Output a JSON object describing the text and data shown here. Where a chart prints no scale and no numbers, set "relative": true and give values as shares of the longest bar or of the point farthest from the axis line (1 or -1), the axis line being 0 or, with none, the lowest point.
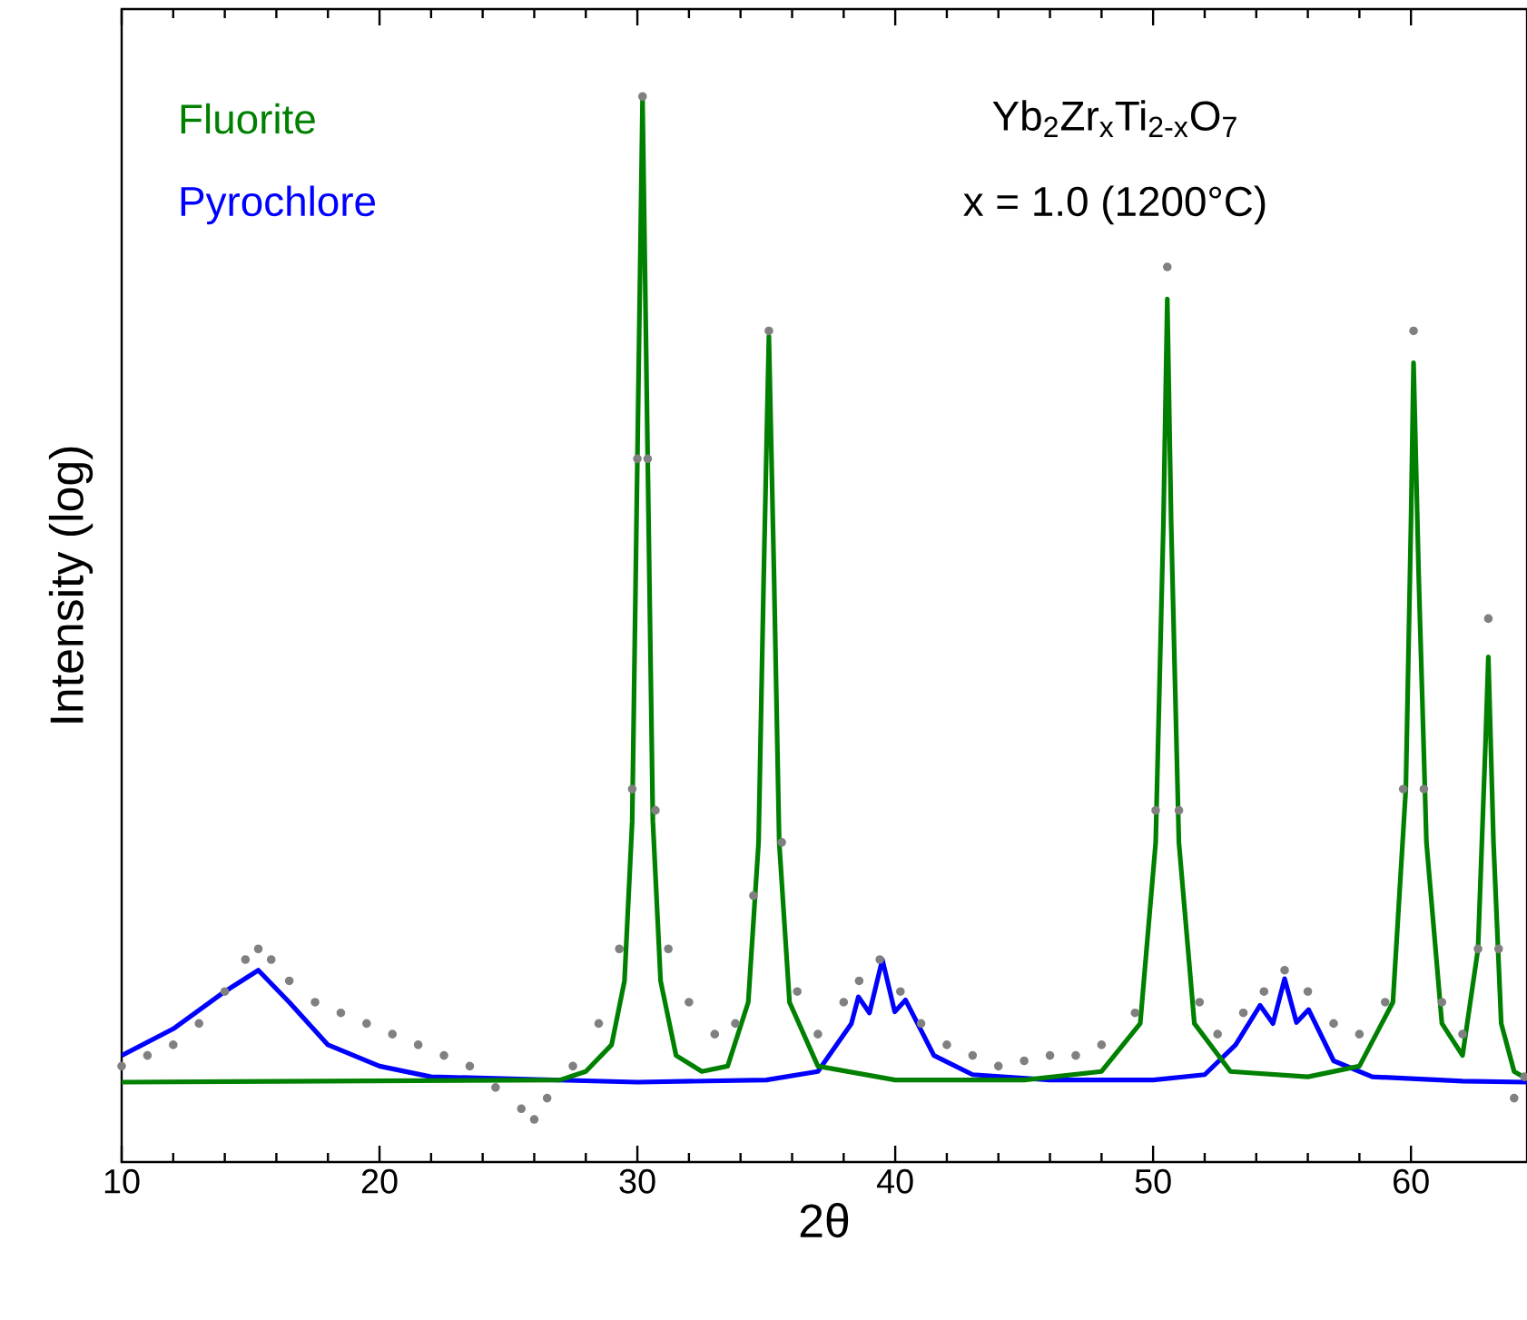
{
  "chart_data": {
    "type": "line",
    "title": "Yb$_{2}$Zr$_{x}$Ti$_{2-x}$O$_{7}$",
    "subtitle": "x = 1.0 (1200°C)",
    "xlabel": "2θ",
    "ylabel": "Intensity (log)",
    "relative": true,
    "xlim": [
      10,
      64.5
    ],
    "xticks": [
      10,
      20,
      30,
      40,
      50,
      60
    ],
    "series": [
      {
        "type": "scatter",
        "color": "#808080",
        "x": [
          10,
          11,
          12,
          13,
          14,
          14.8,
          15.3,
          15.8,
          16.5,
          17.5,
          18.5,
          19.5,
          20.5,
          21.5,
          22.5,
          23.5,
          24.5,
          25.5,
          26,
          26.5,
          27.5,
          28.5,
          29.3,
          29.8,
          30.0,
          30.2,
          30.4,
          30.7,
          31.2,
          32,
          33,
          33.8,
          34.5,
          35.1,
          35.6,
          36.2,
          37,
          38,
          38.6,
          39.4,
          40.2,
          41,
          42,
          43,
          44,
          45,
          46,
          47,
          48,
          49.3,
          50.1,
          50.55,
          51,
          51.8,
          52.5,
          53.5,
          54.3,
          55.1,
          56,
          57,
          58,
          59,
          59.7,
          60.1,
          60.5,
          61.2,
          62,
          62.6,
          63,
          63.4,
          64,
          64.4
        ],
        "values": [
          0.09,
          0.1,
          0.11,
          0.13,
          0.16,
          0.19,
          0.2,
          0.19,
          0.17,
          0.15,
          0.14,
          0.13,
          0.12,
          0.11,
          0.1,
          0.09,
          0.07,
          0.05,
          0.04,
          0.06,
          0.09,
          0.13,
          0.2,
          0.35,
          0.66,
          1.0,
          0.66,
          0.33,
          0.2,
          0.15,
          0.12,
          0.13,
          0.25,
          0.78,
          0.3,
          0.16,
          0.12,
          0.15,
          0.17,
          0.19,
          0.16,
          0.13,
          0.11,
          0.1,
          0.09,
          0.095,
          0.1,
          0.1,
          0.11,
          0.14,
          0.33,
          0.84,
          0.33,
          0.15,
          0.12,
          0.14,
          0.16,
          0.18,
          0.16,
          0.13,
          0.12,
          0.15,
          0.35,
          0.78,
          0.35,
          0.15,
          0.12,
          0.2,
          0.51,
          0.2,
          0.06,
          0.08
        ]
      },
      {
        "name": "Pyrochlore",
        "color": "#0000ff",
        "x": [
          10,
          12,
          14,
          15.3,
          16.5,
          18,
          20,
          22,
          30,
          35,
          37,
          38.3,
          38.57,
          39.0,
          39.5,
          39.98,
          40.4,
          41.5,
          43,
          46,
          50,
          52,
          53.2,
          54.15,
          54.65,
          55.1,
          55.56,
          56.03,
          57,
          58.5,
          62,
          64.5
        ],
        "values": [
          0.1,
          0.125,
          0.16,
          0.18,
          0.15,
          0.11,
          0.09,
          0.08,
          0.075,
          0.077,
          0.085,
          0.13,
          0.155,
          0.14,
          0.19,
          0.141,
          0.152,
          0.1,
          0.082,
          0.077,
          0.077,
          0.082,
          0.11,
          0.147,
          0.13,
          0.172,
          0.131,
          0.143,
          0.095,
          0.08,
          0.076,
          0.075
        ]
      },
      {
        "name": "Fluorite",
        "color": "#008000",
        "x": [
          10,
          27,
          28,
          29,
          29.5,
          29.8,
          30.0,
          30.2,
          30.4,
          30.6,
          30.9,
          31.5,
          32.5,
          33.5,
          34.3,
          34.7,
          34.9,
          35.1,
          35.3,
          35.5,
          35.9,
          37,
          40,
          45,
          48,
          49.5,
          50.1,
          50.4,
          50.55,
          50.7,
          51.0,
          51.6,
          53,
          56,
          58,
          59.3,
          59.8,
          60.0,
          60.1,
          60.3,
          60.6,
          61.2,
          62.0,
          62.6,
          62.9,
          63.0,
          63.2,
          63.5,
          64.0,
          64.5
        ],
        "values": [
          0.075,
          0.077,
          0.085,
          0.11,
          0.17,
          0.32,
          0.66,
          0.997,
          0.66,
          0.32,
          0.17,
          0.1,
          0.085,
          0.09,
          0.15,
          0.3,
          0.55,
          0.775,
          0.55,
          0.3,
          0.15,
          0.09,
          0.077,
          0.077,
          0.085,
          0.13,
          0.3,
          0.6,
          0.81,
          0.6,
          0.3,
          0.13,
          0.085,
          0.08,
          0.09,
          0.15,
          0.35,
          0.6,
          0.75,
          0.55,
          0.3,
          0.13,
          0.1,
          0.2,
          0.4,
          0.474,
          0.3,
          0.13,
          0.085,
          0.078
        ]
      }
    ]
  }
}
